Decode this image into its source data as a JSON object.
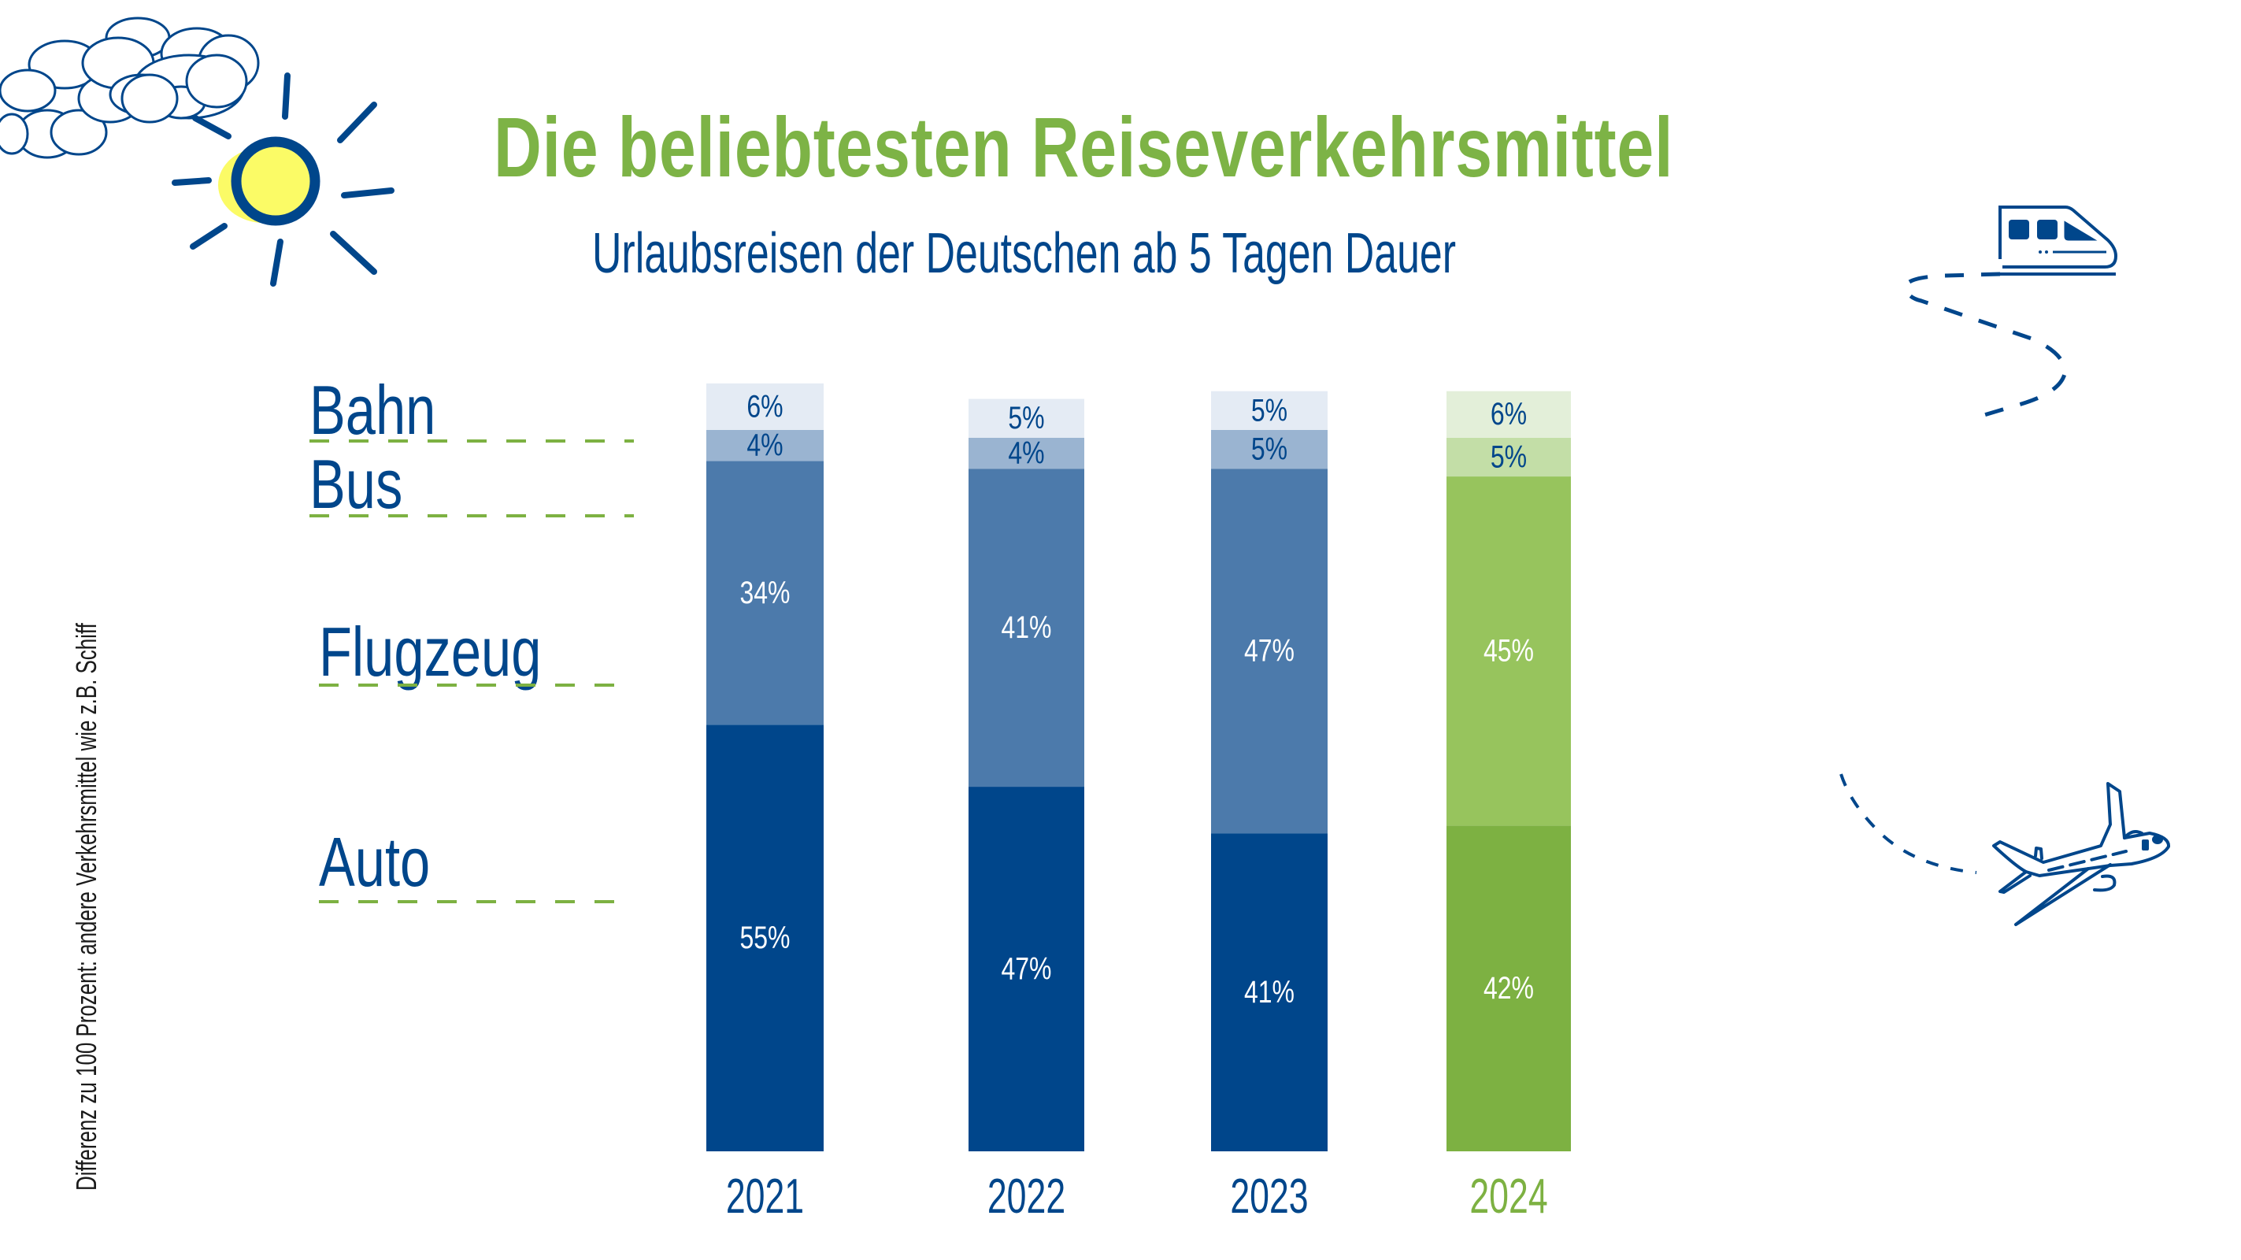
{
  "title": "Die beliebtesten Reiseverkehrsmittel",
  "subtitle": "Urlaubsreisen der Deutschen ab 5 Tagen Dauer",
  "footnote": "Differenz zu 100 Prozent: andere Verkehrsmittel wie z.B. Schiff",
  "decorations": [
    "cloud-icon",
    "sun-icon",
    "train-icon",
    "airplane-icon"
  ],
  "colors": {
    "blue_dark": "#00468b",
    "blue_mid": "#4c7aab",
    "blue_light": "#9ab4d1",
    "blue_pale": "#e4ebf4",
    "green_dark": "#7db142",
    "green_mid": "#97c45d",
    "green_light": "#c3dea7",
    "green_pale": "#e3efd9",
    "title_green": "#7db346",
    "label_white": "#ffffff"
  },
  "chart_data": {
    "type": "bar",
    "stacked": true,
    "title": "Die beliebtesten Reiseverkehrsmittel",
    "subtitle": "Urlaubsreisen der Deutschen ab 5 Tagen Dauer",
    "xlabel": "",
    "ylabel": "",
    "unit": "%",
    "ylim": [
      0,
      100
    ],
    "grid": false,
    "legend": "left",
    "categories": [
      "2021",
      "2022",
      "2023",
      "2024"
    ],
    "highlight_category": "2024",
    "series": [
      {
        "name": "Auto",
        "values": [
          55,
          47,
          41,
          42
        ]
      },
      {
        "name": "Flugzeug",
        "values": [
          34,
          41,
          47,
          45
        ]
      },
      {
        "name": "Bus",
        "values": [
          4,
          4,
          5,
          5
        ]
      },
      {
        "name": "Bahn",
        "values": [
          6,
          5,
          5,
          6
        ]
      }
    ],
    "data_labels": [
      [
        "55%",
        "47%",
        "41%",
        "42%"
      ],
      [
        "34%",
        "41%",
        "47%",
        "45%"
      ],
      [
        "4%",
        "4%",
        "5%",
        "5%"
      ],
      [
        "6%",
        "5%",
        "5%",
        "6%"
      ]
    ],
    "legend_labels": [
      "Bahn",
      "Bus",
      "Flugzeug",
      "Auto"
    ],
    "note": "Differenz zu 100 Prozent: andere Verkehrsmittel wie z.B. Schiff"
  }
}
